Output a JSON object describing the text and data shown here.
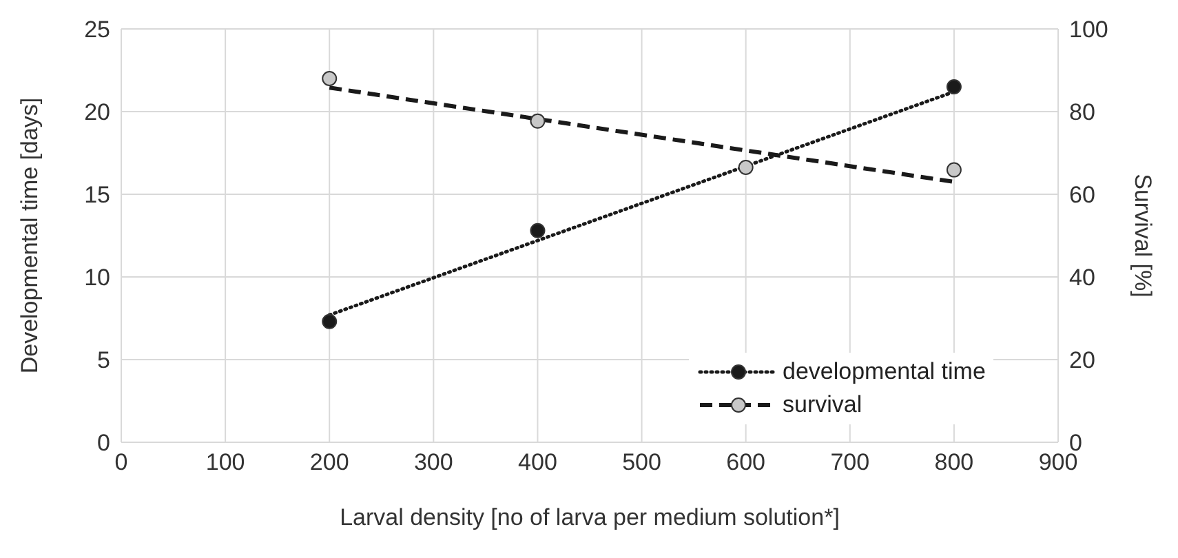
{
  "chart_data": {
    "type": "scatter",
    "xlabel": "Larval density [no of larva per medium solution*]",
    "ylabel": "Developmental time [days]",
    "y2label": "Survival [%]",
    "series": [
      {
        "name": "developmental time",
        "color": "#1a1a1a",
        "x": [
          200,
          400,
          600,
          800
        ],
        "values": [
          7.3,
          12.8,
          null,
          21.5
        ]
      },
      {
        "type": "line",
        "color": "#1a1a1a",
        "line_style": "dotted",
        "marker": "none",
        "x": [
          200,
          800
        ],
        "values": [
          7.7,
          21.2
        ]
      },
      {
        "name": "survival",
        "axis": "y2",
        "color": "#c8c8c8",
        "x": [
          200,
          400,
          600,
          800
        ],
        "values": [
          88,
          77.7,
          66.5,
          65.9
        ]
      },
      {
        "type": "line",
        "axis": "y2",
        "color": "#1a1a1a",
        "line_style": "dashed",
        "marker": "none",
        "x": [
          200,
          800
        ],
        "values": [
          85.8,
          63
        ]
      }
    ],
    "xlim": [
      0,
      900
    ],
    "xticks": [
      0,
      100,
      200,
      300,
      400,
      500,
      600,
      700,
      800,
      900
    ],
    "ylim": [
      0,
      25
    ],
    "yticks": [
      0,
      5,
      10,
      15,
      20,
      25
    ],
    "y2lim": [
      0,
      100
    ],
    "y2ticks": [
      0,
      20,
      40,
      60,
      80,
      100
    ],
    "grid": true,
    "legend": "bottom right",
    "marker": "circle"
  }
}
